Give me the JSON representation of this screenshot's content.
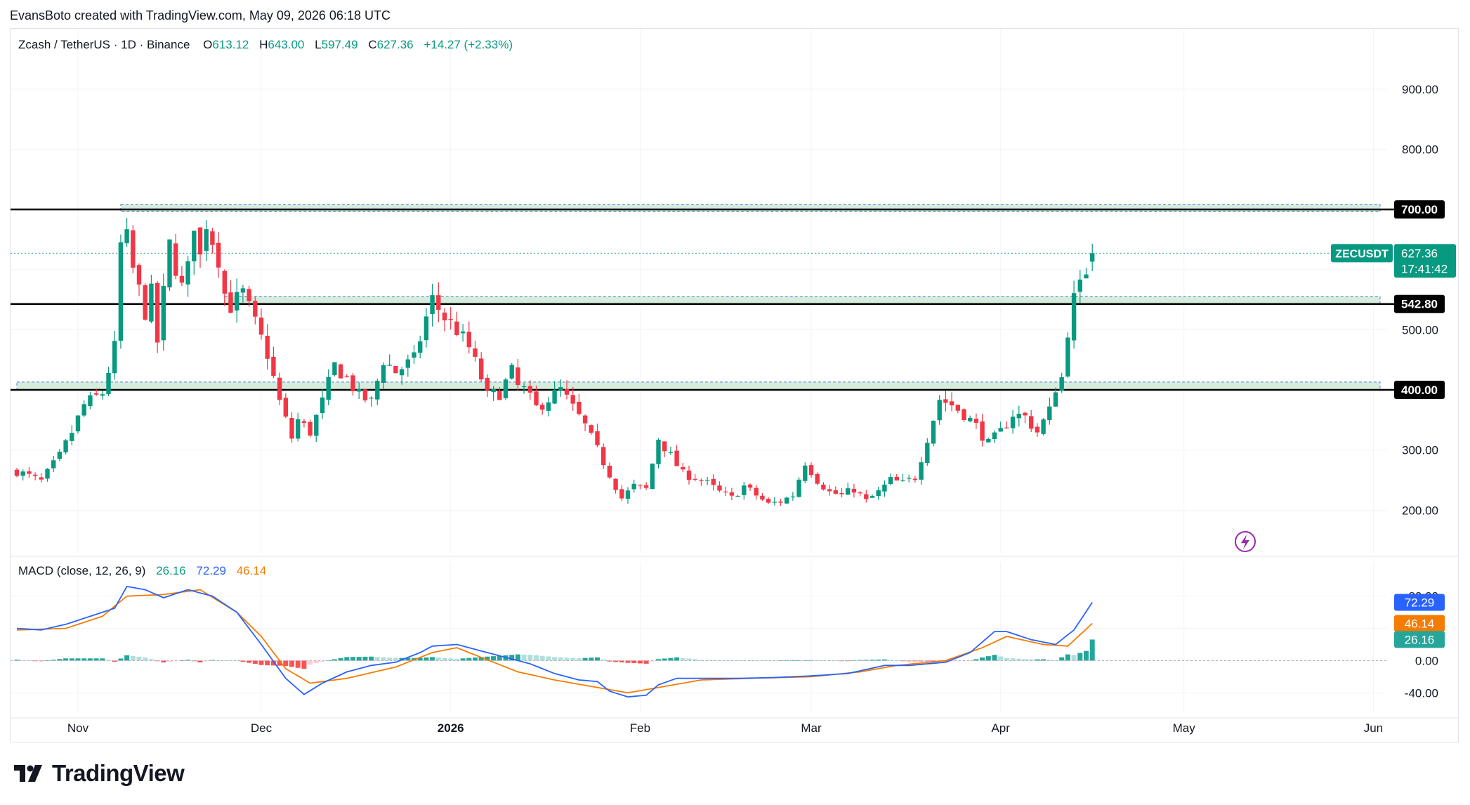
{
  "credit": "EvansBoto created with TradingView.com, May 09, 2026 06:18 UTC",
  "header": {
    "symbol": "Zcash / TetherUS · 1D · Binance",
    "o_label": "O",
    "o": "613.12",
    "h_label": "H",
    "h": "643.00",
    "l_label": "L",
    "l": "597.49",
    "c_label": "C",
    "c": "627.36",
    "change": "+14.27 (+2.33%)"
  },
  "macd_header": {
    "label": "MACD (close, 12, 26, 9)",
    "hist": "26.16",
    "macd": "72.29",
    "signal": "46.14"
  },
  "price_badge": {
    "ticker": "ZECUSDT",
    "price": "627.36",
    "countdown": "17:41:42"
  },
  "levels": [
    "700.00",
    "542.80",
    "400.00"
  ],
  "macd_badges": [
    "72.29",
    "46.14",
    "26.16"
  ],
  "colors": {
    "up": "#089981",
    "down": "#f23645",
    "macd": "#2962ff",
    "signal": "#f57c00",
    "zone": "#cfead7",
    "zone_border": "#4a7dd9"
  },
  "logo": "TradingView",
  "chart_data": [
    {
      "type": "candlestick",
      "title": "Zcash / TetherUS · 1D · Binance",
      "y_ticks": [
        200,
        300,
        400,
        500,
        600,
        700,
        800,
        900
      ],
      "y_tick_labels": [
        "200.00",
        "300.00",
        "400.00",
        "500.00",
        "",
        "",
        "800.00",
        "900.00"
      ],
      "ylim": [
        128,
        964
      ],
      "x_tick_labels": [
        "Nov",
        "Dec",
        "2026",
        "Feb",
        "Mar",
        "Apr",
        "May",
        "Jun"
      ],
      "x_tick_days": [
        0,
        30,
        61,
        92,
        120,
        151,
        181,
        212
      ],
      "first_day": -10,
      "ohlc_last": {
        "open": 613.12,
        "high": 643.0,
        "low": 597.49,
        "close": 627.36
      },
      "horizontal_levels": [
        700,
        542.8,
        400
      ],
      "support_resistance_zones": [
        {
          "from": 696,
          "to": 708,
          "start_day": 7
        },
        {
          "from": 542,
          "to": 555,
          "start_day": 24
        },
        {
          "from": 400,
          "to": 413,
          "start_day": -10
        }
      ],
      "close_anchors": [
        [
          -10,
          265
        ],
        [
          -6,
          248
        ],
        [
          -3,
          290
        ],
        [
          -1,
          330
        ],
        [
          1,
          375
        ],
        [
          4,
          395
        ],
        [
          6,
          470
        ],
        [
          7,
          640
        ],
        [
          8,
          650
        ],
        [
          9,
          600
        ],
        [
          11,
          530
        ],
        [
          12,
          560
        ],
        [
          13,
          480
        ],
        [
          15,
          640
        ],
        [
          17,
          570
        ],
        [
          18,
          600
        ],
        [
          19,
          680
        ],
        [
          20,
          620
        ],
        [
          21,
          680
        ],
        [
          23,
          620
        ],
        [
          24,
          560
        ],
        [
          25,
          540
        ],
        [
          27,
          560
        ],
        [
          29,
          510
        ],
        [
          31,
          460
        ],
        [
          33,
          380
        ],
        [
          35,
          320
        ],
        [
          36,
          350
        ],
        [
          38,
          330
        ],
        [
          40,
          380
        ],
        [
          42,
          440
        ],
        [
          44,
          420
        ],
        [
          46,
          390
        ],
        [
          48,
          380
        ],
        [
          50,
          450
        ],
        [
          52,
          430
        ],
        [
          55,
          450
        ],
        [
          57,
          520
        ],
        [
          58,
          550
        ],
        [
          60,
          520
        ],
        [
          62,
          500
        ],
        [
          64,
          470
        ],
        [
          66,
          420
        ],
        [
          67,
          390
        ],
        [
          69,
          395
        ],
        [
          71,
          430
        ],
        [
          72,
          405
        ],
        [
          73,
          400
        ],
        [
          75,
          370
        ],
        [
          77,
          385
        ],
        [
          79,
          400
        ],
        [
          81,
          370
        ],
        [
          83,
          340
        ],
        [
          85,
          300
        ],
        [
          87,
          260
        ],
        [
          89,
          220
        ],
        [
          91,
          240
        ],
        [
          93,
          235
        ],
        [
          95,
          320
        ],
        [
          97,
          290
        ],
        [
          99,
          260
        ],
        [
          101,
          255
        ],
        [
          103,
          245
        ],
        [
          105,
          230
        ],
        [
          107,
          220
        ],
        [
          109,
          240
        ],
        [
          111,
          225
        ],
        [
          113,
          210
        ],
        [
          115,
          215
        ],
        [
          117,
          225
        ],
        [
          119,
          280
        ],
        [
          121,
          250
        ],
        [
          123,
          230
        ],
        [
          125,
          225
        ],
        [
          127,
          235
        ],
        [
          129,
          215
        ],
        [
          131,
          230
        ],
        [
          133,
          250
        ],
        [
          135,
          245
        ],
        [
          137,
          255
        ],
        [
          139,
          320
        ],
        [
          141,
          385
        ],
        [
          143,
          375
        ],
        [
          145,
          360
        ],
        [
          147,
          340
        ],
        [
          149,
          310
        ],
        [
          151,
          330
        ],
        [
          153,
          360
        ],
        [
          155,
          355
        ],
        [
          157,
          330
        ],
        [
          159,
          365
        ],
        [
          160,
          405
        ],
        [
          161,
          420
        ],
        [
          162,
          500
        ],
        [
          163,
          550
        ],
        [
          164,
          570
        ],
        [
          165,
          600
        ],
        [
          166,
          627.36
        ]
      ]
    },
    {
      "type": "macd",
      "title": "MACD (close, 12, 26, 9)",
      "y_ticks": [
        80,
        40,
        0,
        -40
      ],
      "y_tick_labels": [
        "80.00",
        "",
        "0.00",
        "-40.00"
      ],
      "ylim": [
        -65,
        105
      ],
      "last": {
        "histogram": 26.16,
        "macd": 72.29,
        "signal": 46.14
      },
      "macd_anchors": [
        [
          -10,
          40
        ],
        [
          -6,
          38
        ],
        [
          -2,
          45
        ],
        [
          2,
          55
        ],
        [
          6,
          65
        ],
        [
          8,
          92
        ],
        [
          11,
          88
        ],
        [
          14,
          78
        ],
        [
          18,
          88
        ],
        [
          22,
          80
        ],
        [
          26,
          60
        ],
        [
          30,
          20
        ],
        [
          34,
          -22
        ],
        [
          37,
          -42
        ],
        [
          40,
          -28
        ],
        [
          44,
          -14
        ],
        [
          48,
          -6
        ],
        [
          52,
          -2
        ],
        [
          56,
          10
        ],
        [
          58,
          18
        ],
        [
          62,
          20
        ],
        [
          66,
          12
        ],
        [
          70,
          4
        ],
        [
          74,
          -4
        ],
        [
          78,
          -16
        ],
        [
          82,
          -24
        ],
        [
          85,
          -26
        ],
        [
          87,
          -38
        ],
        [
          90,
          -45
        ],
        [
          93,
          -43
        ],
        [
          95,
          -30
        ],
        [
          98,
          -22
        ],
        [
          102,
          -22
        ],
        [
          108,
          -22
        ],
        [
          114,
          -21
        ],
        [
          120,
          -19
        ],
        [
          126,
          -16
        ],
        [
          132,
          -6
        ],
        [
          136,
          -6
        ],
        [
          142,
          -2
        ],
        [
          146,
          10
        ],
        [
          150,
          36
        ],
        [
          152,
          36
        ],
        [
          156,
          26
        ],
        [
          160,
          20
        ],
        [
          163,
          38
        ],
        [
          166,
          72.29
        ]
      ],
      "signal_anchors": [
        [
          -10,
          38
        ],
        [
          -2,
          40
        ],
        [
          4,
          55
        ],
        [
          8,
          80
        ],
        [
          14,
          82
        ],
        [
          20,
          88
        ],
        [
          26,
          60
        ],
        [
          30,
          30
        ],
        [
          34,
          -10
        ],
        [
          38,
          -28
        ],
        [
          44,
          -22
        ],
        [
          52,
          -8
        ],
        [
          58,
          10
        ],
        [
          62,
          16
        ],
        [
          66,
          4
        ],
        [
          72,
          -14
        ],
        [
          78,
          -24
        ],
        [
          84,
          -32
        ],
        [
          90,
          -40
        ],
        [
          96,
          -32
        ],
        [
          102,
          -24
        ],
        [
          110,
          -22
        ],
        [
          120,
          -20
        ],
        [
          128,
          -14
        ],
        [
          134,
          -6
        ],
        [
          142,
          0
        ],
        [
          148,
          16
        ],
        [
          152,
          30
        ],
        [
          158,
          20
        ],
        [
          162,
          18
        ],
        [
          166,
          46.14
        ]
      ]
    }
  ]
}
